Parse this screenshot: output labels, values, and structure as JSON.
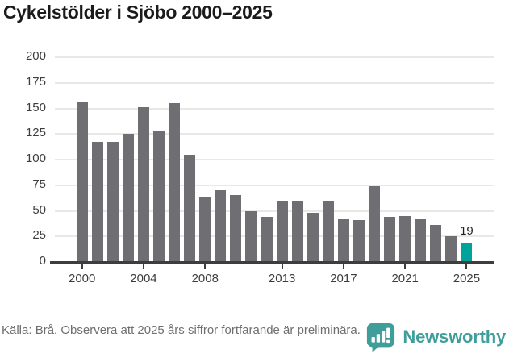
{
  "title": "Cykelstölder i Sjöbo 2000–2025",
  "chart_data": {
    "type": "bar",
    "title": "Cykelstölder i Sjöbo 2000–2025",
    "categories": [
      2000,
      2001,
      2002,
      2003,
      2004,
      2005,
      2006,
      2007,
      2008,
      2009,
      2010,
      2011,
      2012,
      2013,
      2014,
      2015,
      2016,
      2017,
      2018,
      2019,
      2020,
      2021,
      2022,
      2023,
      2024,
      2025
    ],
    "values": [
      157,
      117,
      117,
      125,
      151,
      128,
      155,
      105,
      64,
      70,
      65,
      50,
      44,
      60,
      60,
      48,
      60,
      42,
      41,
      74,
      44,
      45,
      42,
      36,
      25,
      19
    ],
    "highlight_index": 25,
    "highlight_label": "19",
    "ylim": [
      0,
      200
    ],
    "yticks": [
      0,
      25,
      50,
      75,
      100,
      125,
      150,
      175,
      200
    ],
    "xticks": [
      2000,
      2004,
      2008,
      2013,
      2017,
      2021,
      2025
    ],
    "grid": true,
    "legend": "none",
    "bar_color": "#6f6e73",
    "highlight_color": "#00a39c"
  },
  "footer": {
    "source": "Källa: Brå. Observera att 2025 års siffror fortfarande är preliminära.",
    "brand": "Newsworthy",
    "brand_color": "#3f9e99"
  }
}
